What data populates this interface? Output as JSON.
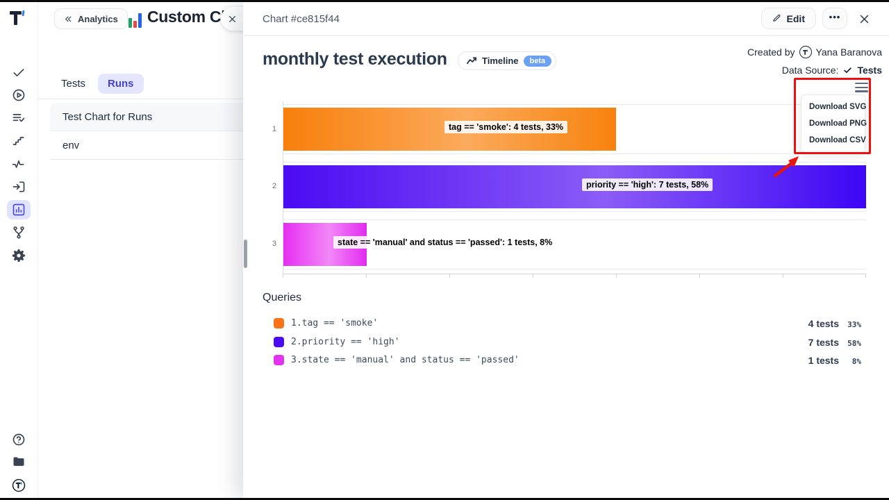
{
  "colors": {
    "brand_indigo": "#4f46e5",
    "active_tab_bg": "#e3e6fc",
    "beta_badge_blue": "#6ba1f2",
    "annotation_red": "#ec1111"
  },
  "sidebar": {
    "icons_top": [
      {
        "name": "tests-check-icon"
      },
      {
        "name": "runs-play-icon"
      },
      {
        "name": "plans-list-check-icon"
      },
      {
        "name": "steps-stairs-icon"
      },
      {
        "name": "pulse-activity-icon"
      },
      {
        "name": "import-box-icon"
      },
      {
        "name": "analytics-bar-chart-icon",
        "active": true
      },
      {
        "name": "branches-git-icon"
      },
      {
        "name": "settings-gear-icon"
      }
    ],
    "icons_bottom": [
      {
        "name": "help-circle-icon"
      },
      {
        "name": "projects-folder-icon"
      },
      {
        "name": "brand-logo-icon"
      }
    ]
  },
  "panel": {
    "back_button_label": "Analytics",
    "title": "Custom Charts",
    "tabs": [
      {
        "label": "Tests",
        "active": false
      },
      {
        "label": "Runs",
        "active": true
      }
    ],
    "list": [
      "Test Chart for Runs",
      "env"
    ]
  },
  "modal": {
    "header": {
      "title": "Chart #ce815f44",
      "edit_label": "Edit",
      "more_label": "•••"
    },
    "chart_header": {
      "title": "monthly test execution",
      "timeline_label": "Timeline",
      "beta_label": "beta",
      "created_by_label": "Created by",
      "created_by_name": "Yana Baranova",
      "data_source_label": "Data Source:",
      "data_source_value": "Tests"
    },
    "download_menu": {
      "items": [
        "Download SVG",
        "Download PNG",
        "Download CSV"
      ]
    },
    "queries": {
      "heading": "Queries",
      "rows": [
        {
          "index": "1.",
          "query": "tag == 'smoke'",
          "tests": "4 tests",
          "percent": "33%",
          "color": "#f97316"
        },
        {
          "index": "2.",
          "query": "priority == 'high'",
          "tests": "7 tests",
          "percent": "58%",
          "color": "#4b0bf0"
        },
        {
          "index": "3.",
          "query": "state == 'manual' and status == 'passed'",
          "tests": "1 tests",
          "percent": "8%",
          "color": "#e233ee"
        }
      ]
    }
  },
  "chart_data": {
    "type": "bar",
    "orientation": "horizontal",
    "title": "monthly test execution",
    "categories": [
      "1",
      "2",
      "3"
    ],
    "xlim": [
      0,
      7
    ],
    "x_tick_interval": 1,
    "grid": false,
    "legend_position": "bottom",
    "series": [
      {
        "name": "tag == 'smoke'",
        "value": 4,
        "tests": 4,
        "percent": 33,
        "label": "tag == 'smoke': 4 tests, 33%",
        "gradient": [
          "#f77f0b",
          "#fbaa5c",
          "#f7820d"
        ]
      },
      {
        "name": "priority == 'high'",
        "value": 7,
        "tests": 7,
        "percent": 58,
        "label": "priority == 'high': 7 tests, 58%",
        "gradient": [
          "#4a0bf2",
          "#8b5cf6",
          "#3d06f5"
        ]
      },
      {
        "name": "state == 'manual' and status == 'passed'",
        "value": 1,
        "tests": 1,
        "percent": 8,
        "label": "state == 'manual' and status == 'passed': 1 tests, 8%",
        "gradient": [
          "#e52ef2",
          "#f287f7",
          "#e22cf0"
        ]
      }
    ]
  }
}
